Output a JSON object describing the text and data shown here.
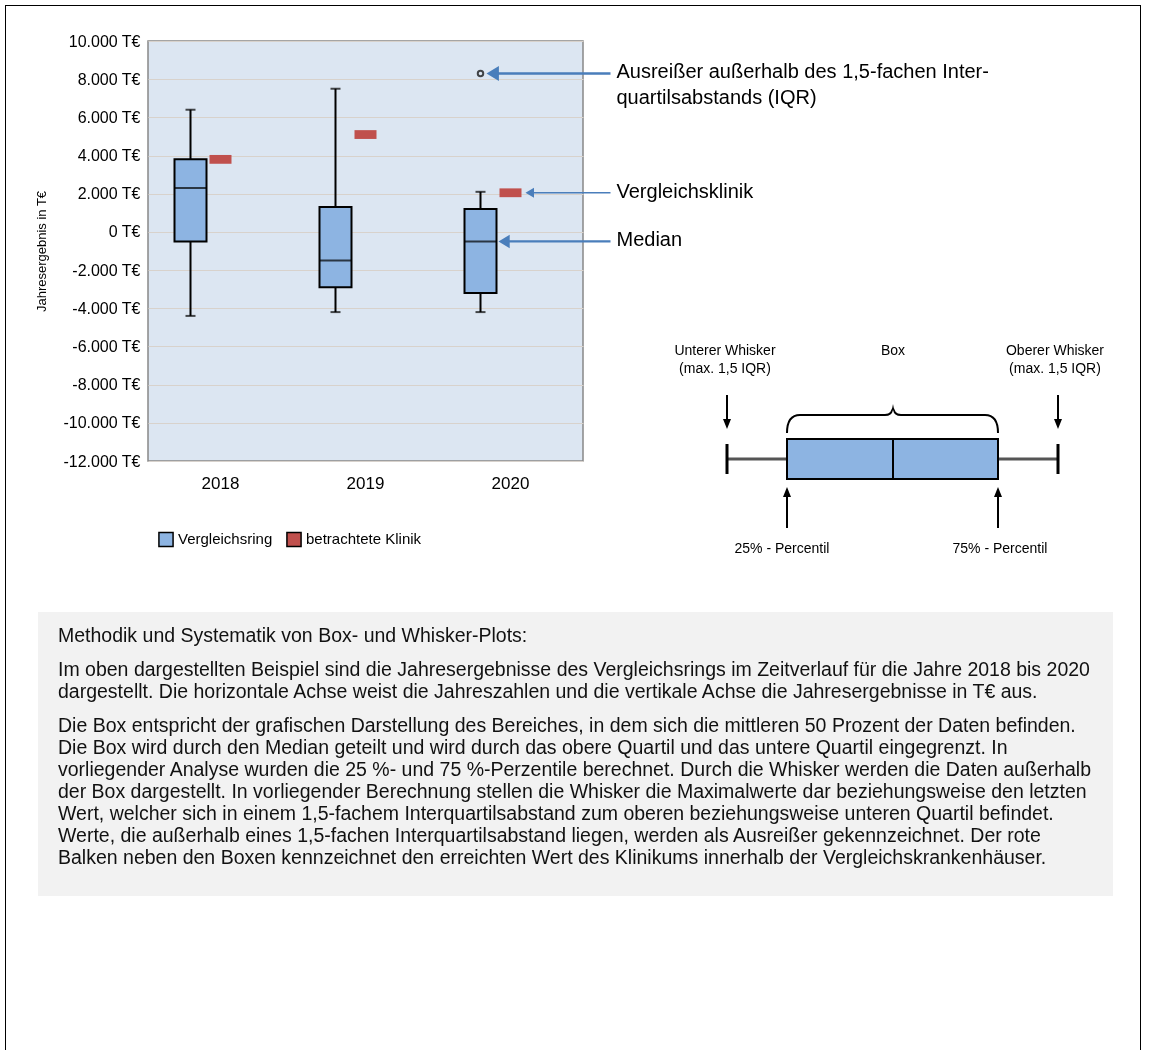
{
  "chart_data": {
    "type": "box",
    "ylabel": "Jahresergebnis in T€",
    "categories": [
      "2018",
      "2019",
      "2020"
    ],
    "ylim": [
      -12000,
      10000
    ],
    "yticks": [
      {
        "value": -12000,
        "label": "-12.000 T€"
      },
      {
        "value": -10000,
        "label": "-10.000 T€"
      },
      {
        "value": -8000,
        "label": "-8.000 T€"
      },
      {
        "value": -6000,
        "label": "-6.000 T€"
      },
      {
        "value": -4000,
        "label": "-4.000 T€"
      },
      {
        "value": -2000,
        "label": "-2.000 T€"
      },
      {
        "value": 0,
        "label": "0 T€"
      },
      {
        "value": 2000,
        "label": "2.000 T€"
      },
      {
        "value": 4000,
        "label": "4.000 T€"
      },
      {
        "value": 6000,
        "label": "6.000 T€"
      },
      {
        "value": 8000,
        "label": "8.000 T€"
      },
      {
        "value": 10000,
        "label": "10.000 T€"
      }
    ],
    "grid": "y",
    "legend": "bottom",
    "series": [
      {
        "name": "Vergleichsring",
        "type": "box",
        "color": "#8db4e2",
        "boxes": [
          {
            "low": -4400,
            "q1": -500,
            "median": 2300,
            "q3": 3800,
            "high": 6400
          },
          {
            "low": -4200,
            "q1": -2900,
            "median": -1500,
            "q3": 1300,
            "high": 7500
          },
          {
            "low": -4200,
            "q1": -3200,
            "median": -500,
            "q3": 1200,
            "high": 2100,
            "outliers": [
              8300
            ]
          }
        ]
      },
      {
        "name": "betrachtete Klinik",
        "type": "scatter",
        "color": "#c0504d",
        "values": [
          3800,
          5100,
          2050
        ]
      }
    ],
    "annotations": [
      "Ausreißer außerhalb des 1,5-fachen Inter-\nquartilsabstands (IQR)",
      "Vergleichsklinik",
      "Median",
      "Unterer Whisker\n(max. 1,5 IQR)",
      "Box",
      "Oberer Whisker\n(max. 1,5 IQR)",
      "25% - Percentil",
      "75% - Percentil",
      "Methodik und Systematik von Box- und Whisker-Plots:",
      "Im oben dargestellten Beispiel sind die Jahresergebnisse des Vergleichsrings im Zeitverlauf für die Jahre 2018 bis 2020 dargestellt. Die horizontale Achse weist die Jahreszahlen und die vertikale Achse die Jahresergebnisse in T€ aus.",
      "Die Box entspricht der grafischen Darstellung des Bereiches, in dem sich die mittleren 50 Prozent der Daten befinden. Die Box wird durch den Median geteilt und wird durch das obere Quartil und das untere Quartil eingegrenzt. In vorliegender Analyse wurden die 25 %- und 75 %-Perzentile berechnet. Durch die Whisker werden die Daten außerhalb der Box dargestellt. In vorliegender Berechnung stellen die Whisker die Maximalwerte dar beziehungsweise den letzten Wert, welcher sich in einem 1,5-fachem Interquartilsabstand zum oberen beziehungsweise unteren Quartil befindet. Werte, die außerhalb eines 1,5-fachen Interquartilsabstand liegen, werden als Ausreißer gekennzeichnet. Der rote Balken neben den Boxen kennzeichnet den erreichten Wert des Klinikums innerhalb der Vergleichskrankenhäuser."
    ]
  }
}
